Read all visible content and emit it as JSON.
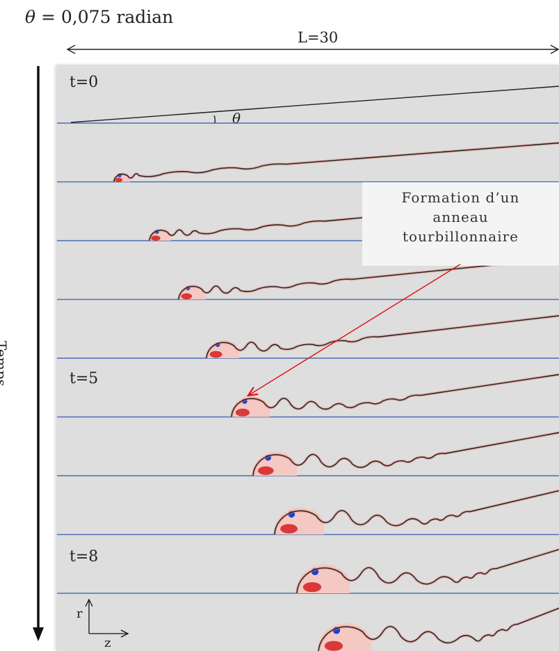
{
  "title": {
    "symbol": "θ",
    "text": " = 0,075 radian"
  },
  "length_label": "L=30",
  "time_axis_label": "Temps",
  "angle_symbol": "θ",
  "time_labels": {
    "t0": "t=0",
    "t5": "t=5",
    "t8": "t=8"
  },
  "callout": {
    "line1": "Formation d’un",
    "line2": "anneau",
    "line3": "tourbillonnaire"
  },
  "axes": {
    "r": "r",
    "z": "z"
  },
  "colors": {
    "baseline": "#4a6fb5",
    "interface": "#1e1e1e",
    "vorticity_positive": "#d42020",
    "vorticity_negative": "#1a3fd6",
    "annotation_arrow": "#e01818",
    "background": "#dedede"
  }
}
